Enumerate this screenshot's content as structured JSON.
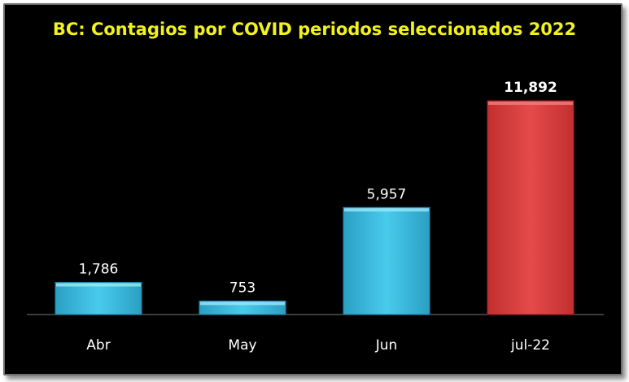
{
  "chart_data": {
    "type": "bar",
    "title": "BC: Contagios por COVID periodos seleccionados 2022",
    "categories": [
      "Abr",
      "May",
      "Jun",
      "jul-22"
    ],
    "values": [
      1786,
      753,
      5957,
      11892
    ],
    "value_labels": [
      "1,786",
      "753",
      "5,957",
      "11,892"
    ],
    "bar_colors": [
      "#35bde0",
      "#35bde0",
      "#35bde0",
      "#d83b3b"
    ],
    "highlight_index": 3,
    "xlabel": "",
    "ylabel": "",
    "ylim": [
      0,
      12000
    ],
    "grid": false,
    "legend": "none"
  }
}
